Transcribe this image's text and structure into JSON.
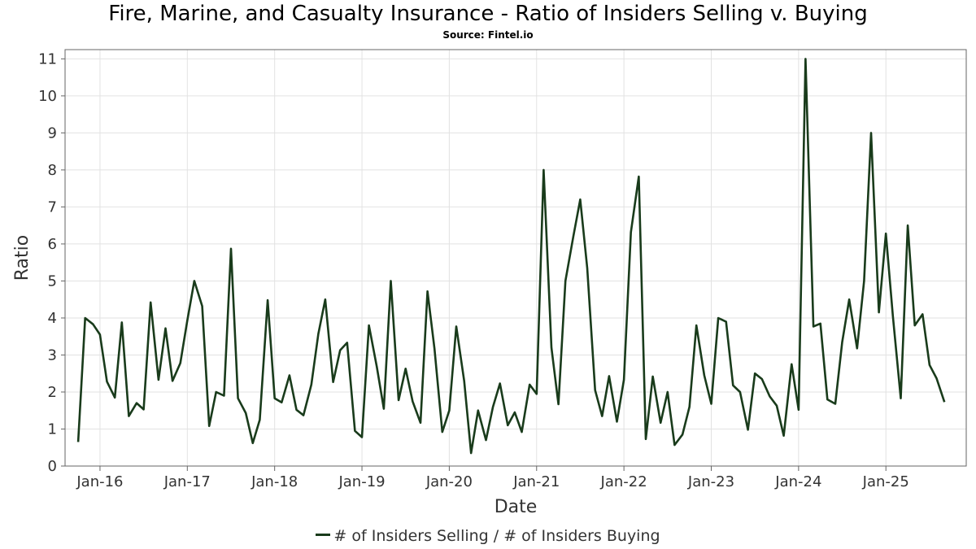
{
  "title": "Fire, Marine, and Casualty Insurance - Ratio of Insiders Selling v. Buying",
  "subtitle": "Source: Fintel.io",
  "chart_data": {
    "type": "line",
    "xlabel": "Date",
    "ylabel": "Ratio",
    "ylim": [
      0,
      11.25
    ],
    "yticks": [
      0,
      1,
      2,
      3,
      4,
      5,
      6,
      7,
      8,
      9,
      10,
      11
    ],
    "xlim": [
      2015.6,
      2025.92
    ],
    "xticks": [
      {
        "label": "Jan-16",
        "value": 2016.0
      },
      {
        "label": "Jan-17",
        "value": 2017.0
      },
      {
        "label": "Jan-18",
        "value": 2018.0
      },
      {
        "label": "Jan-19",
        "value": 2019.0
      },
      {
        "label": "Jan-20",
        "value": 2020.0
      },
      {
        "label": "Jan-21",
        "value": 2021.0
      },
      {
        "label": "Jan-22",
        "value": 2022.0
      },
      {
        "label": "Jan-23",
        "value": 2023.0
      },
      {
        "label": "Jan-24",
        "value": 2024.0
      },
      {
        "label": "Jan-25",
        "value": 2025.0
      }
    ],
    "grid": true,
    "legend_position": "bottom",
    "color": "#193b1b",
    "series": [
      {
        "name": "# of Insiders Selling / # of Insiders Buying",
        "x": [
          2015.75,
          2015.83,
          2015.92,
          2016.0,
          2016.08,
          2016.17,
          2016.25,
          2016.33,
          2016.42,
          2016.5,
          2016.58,
          2016.67,
          2016.75,
          2016.83,
          2016.92,
          2017.0,
          2017.08,
          2017.17,
          2017.25,
          2017.33,
          2017.42,
          2017.5,
          2017.58,
          2017.67,
          2017.75,
          2017.83,
          2017.92,
          2018.0,
          2018.08,
          2018.17,
          2018.25,
          2018.33,
          2018.42,
          2018.5,
          2018.58,
          2018.67,
          2018.75,
          2018.83,
          2018.92,
          2019.0,
          2019.08,
          2019.17,
          2019.25,
          2019.33,
          2019.42,
          2019.5,
          2019.58,
          2019.67,
          2019.75,
          2019.83,
          2019.92,
          2020.0,
          2020.08,
          2020.17,
          2020.25,
          2020.33,
          2020.42,
          2020.5,
          2020.58,
          2020.67,
          2020.75,
          2020.83,
          2020.92,
          2021.0,
          2021.08,
          2021.17,
          2021.25,
          2021.33,
          2021.42,
          2021.5,
          2021.58,
          2021.67,
          2021.75,
          2021.83,
          2021.92,
          2022.0,
          2022.08,
          2022.17,
          2022.25,
          2022.33,
          2022.42,
          2022.5,
          2022.58,
          2022.67,
          2022.75,
          2022.83,
          2022.92,
          2023.0,
          2023.08,
          2023.17,
          2023.25,
          2023.33,
          2023.42,
          2023.5,
          2023.58,
          2023.67,
          2023.75,
          2023.83,
          2023.92,
          2024.0,
          2024.08,
          2024.17,
          2024.25,
          2024.33,
          2024.42,
          2024.5,
          2024.58,
          2024.67,
          2024.75,
          2024.83,
          2024.92,
          2025.0,
          2025.08,
          2025.17,
          2025.25,
          2025.33,
          2025.42,
          2025.5,
          2025.58,
          2025.67
        ],
        "values": [
          0.65,
          4.0,
          3.83,
          3.55,
          2.28,
          1.85,
          3.88,
          1.35,
          1.7,
          1.53,
          4.42,
          2.33,
          3.72,
          2.3,
          2.78,
          3.93,
          5.0,
          4.32,
          1.08,
          2.0,
          1.9,
          5.87,
          1.83,
          1.43,
          0.62,
          1.25,
          4.48,
          1.83,
          1.72,
          2.45,
          1.52,
          1.37,
          2.2,
          3.57,
          4.5,
          2.27,
          3.13,
          3.33,
          0.95,
          0.78,
          3.8,
          2.68,
          1.55,
          5.0,
          1.78,
          2.63,
          1.75,
          1.17,
          4.72,
          3.17,
          0.92,
          1.5,
          3.77,
          2.3,
          0.35,
          1.5,
          0.7,
          1.6,
          2.23,
          1.1,
          1.45,
          0.92,
          2.2,
          1.95,
          8.0,
          3.2,
          1.67,
          5.0,
          6.2,
          7.2,
          5.35,
          2.05,
          1.35,
          2.43,
          1.2,
          2.33,
          6.32,
          7.82,
          0.73,
          2.42,
          1.17,
          2.0,
          0.57,
          0.85,
          1.6,
          3.8,
          2.45,
          1.68,
          4.0,
          3.9,
          2.18,
          2.0,
          0.98,
          2.5,
          2.35,
          1.88,
          1.63,
          0.82,
          2.75,
          1.52,
          11.0,
          3.77,
          3.85,
          1.8,
          1.68,
          3.35,
          4.5,
          3.18,
          5.0,
          9.0,
          4.15,
          6.28,
          4.05,
          1.83,
          6.5,
          3.8,
          4.1,
          2.73,
          2.37,
          1.73
        ]
      }
    ]
  }
}
